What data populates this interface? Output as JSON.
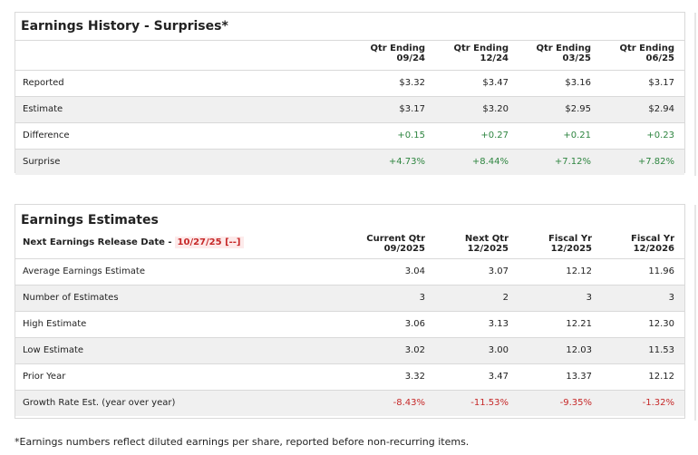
{
  "history": {
    "title": "Earnings History - Surprises*",
    "columns": [
      {
        "line1": "Qtr Ending",
        "line2": "09/24"
      },
      {
        "line1": "Qtr Ending",
        "line2": "12/24"
      },
      {
        "line1": "Qtr Ending",
        "line2": "03/25"
      },
      {
        "line1": "Qtr Ending",
        "line2": "06/25"
      }
    ],
    "rows": [
      {
        "label": "Reported",
        "values": [
          "$3.32",
          "$3.47",
          "$3.16",
          "$3.17"
        ]
      },
      {
        "label": "Estimate",
        "values": [
          "$3.17",
          "$3.20",
          "$2.95",
          "$2.94"
        ]
      },
      {
        "label": "Difference",
        "values": [
          "+0.15",
          "+0.27",
          "+0.21",
          "+0.23"
        ]
      },
      {
        "label": "Surprise",
        "values": [
          "+4.73%",
          "+8.44%",
          "+7.12%",
          "+7.82%"
        ]
      }
    ]
  },
  "estimates": {
    "title": "Earnings Estimates",
    "next_release_label": "Next Earnings Release Date -",
    "next_release_date": "10/27/25 [--]",
    "columns": [
      {
        "line1": "Current Qtr",
        "line2": "09/2025"
      },
      {
        "line1": "Next Qtr",
        "line2": "12/2025"
      },
      {
        "line1": "Fiscal Yr",
        "line2": "12/2025"
      },
      {
        "line1": "Fiscal Yr",
        "line2": "12/2026"
      }
    ],
    "rows": [
      {
        "label": "Average Earnings Estimate",
        "values": [
          "3.04",
          "3.07",
          "12.12",
          "11.96"
        ]
      },
      {
        "label": "Number of Estimates",
        "values": [
          "3",
          "2",
          "3",
          "3"
        ]
      },
      {
        "label": "High Estimate",
        "values": [
          "3.06",
          "3.13",
          "12.21",
          "12.30"
        ]
      },
      {
        "label": "Low Estimate",
        "values": [
          "3.02",
          "3.00",
          "12.03",
          "11.53"
        ]
      },
      {
        "label": "Prior Year",
        "values": [
          "3.32",
          "3.47",
          "13.37",
          "12.12"
        ]
      },
      {
        "label": "Growth Rate Est. (year over year)",
        "values": [
          "-8.43%",
          "-11.53%",
          "-9.35%",
          "-1.32%"
        ]
      }
    ]
  },
  "footnote": "*Earnings numbers reflect diluted earnings per share, reported before non-recurring items.",
  "colors": {
    "positive": "#2e8540",
    "negative": "#c62828",
    "alt_row": "#f0f0f0",
    "border": "#d9d9d9"
  }
}
